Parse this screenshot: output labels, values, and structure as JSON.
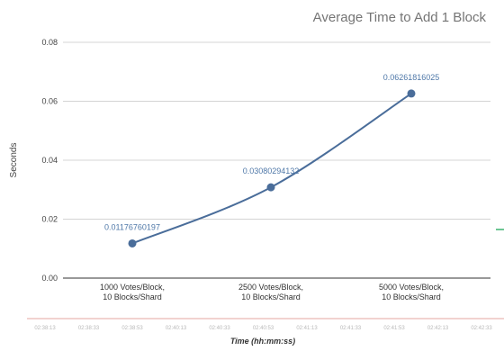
{
  "chart_data": {
    "type": "line",
    "title": "Average Time to Add 1 Block",
    "ylabel": "Seconds",
    "categories": [
      "1000 Votes/Block,\n10 Blocks/Shard",
      "2500 Votes/Block,\n10 Blocks/Shard",
      "5000 Votes/Block,\n10 Blocks/Shard"
    ],
    "series": [
      {
        "values": [
          0.01176760197,
          0.03080294132,
          0.06261816025
        ]
      }
    ],
    "data_labels": [
      "0.01176760197",
      "0.03080294132",
      "0.06261816025"
    ],
    "ylim": [
      0,
      0.08
    ],
    "yticks": [
      "0.00",
      "0.02",
      "0.04",
      "0.06",
      "0.08"
    ],
    "grid": true,
    "line_color": "#4a6d9a",
    "label_color": "#4f78a8"
  },
  "background_strip": {
    "time_ticks": [
      "02:38:13",
      "02:38:33",
      "02:38:53",
      "02:40:13",
      "02:40:33",
      "02:40:53",
      "02:41:13",
      "02:41:33",
      "02:41:53",
      "02:42:13",
      "02:42:33"
    ],
    "axis_title": "Time (hh:mm:ss)"
  }
}
